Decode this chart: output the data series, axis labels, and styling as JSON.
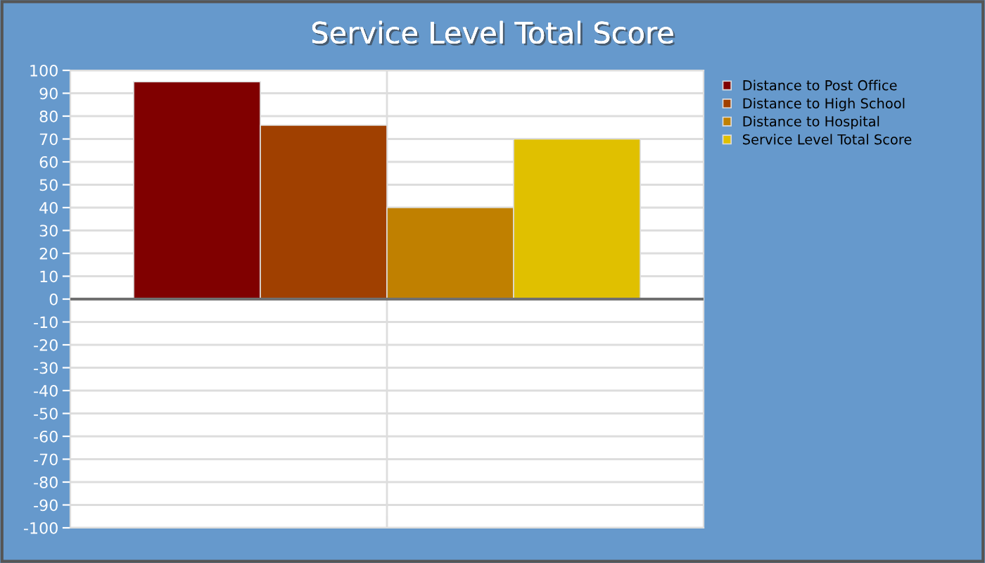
{
  "chart_data": {
    "type": "bar",
    "title": "Service Level Total Score",
    "categories": [
      null
    ],
    "series": [
      {
        "name": "Distance to Post Office",
        "color": "#800000",
        "values": [
          95
        ]
      },
      {
        "name": "Distance to High School",
        "color": "#a04000",
        "values": [
          76
        ]
      },
      {
        "name": "Distance to Hospital",
        "color": "#c08000",
        "values": [
          40
        ]
      },
      {
        "name": "Service Level Total Score",
        "color": "#e0c000",
        "values": [
          70
        ]
      }
    ],
    "ylim": [
      -100,
      100
    ],
    "yticks": [
      -100,
      -90,
      -80,
      -70,
      -60,
      -50,
      -40,
      -30,
      -20,
      -10,
      0,
      10,
      20,
      30,
      40,
      50,
      60,
      70,
      80,
      90,
      100
    ],
    "grid": true,
    "legend": "right"
  }
}
